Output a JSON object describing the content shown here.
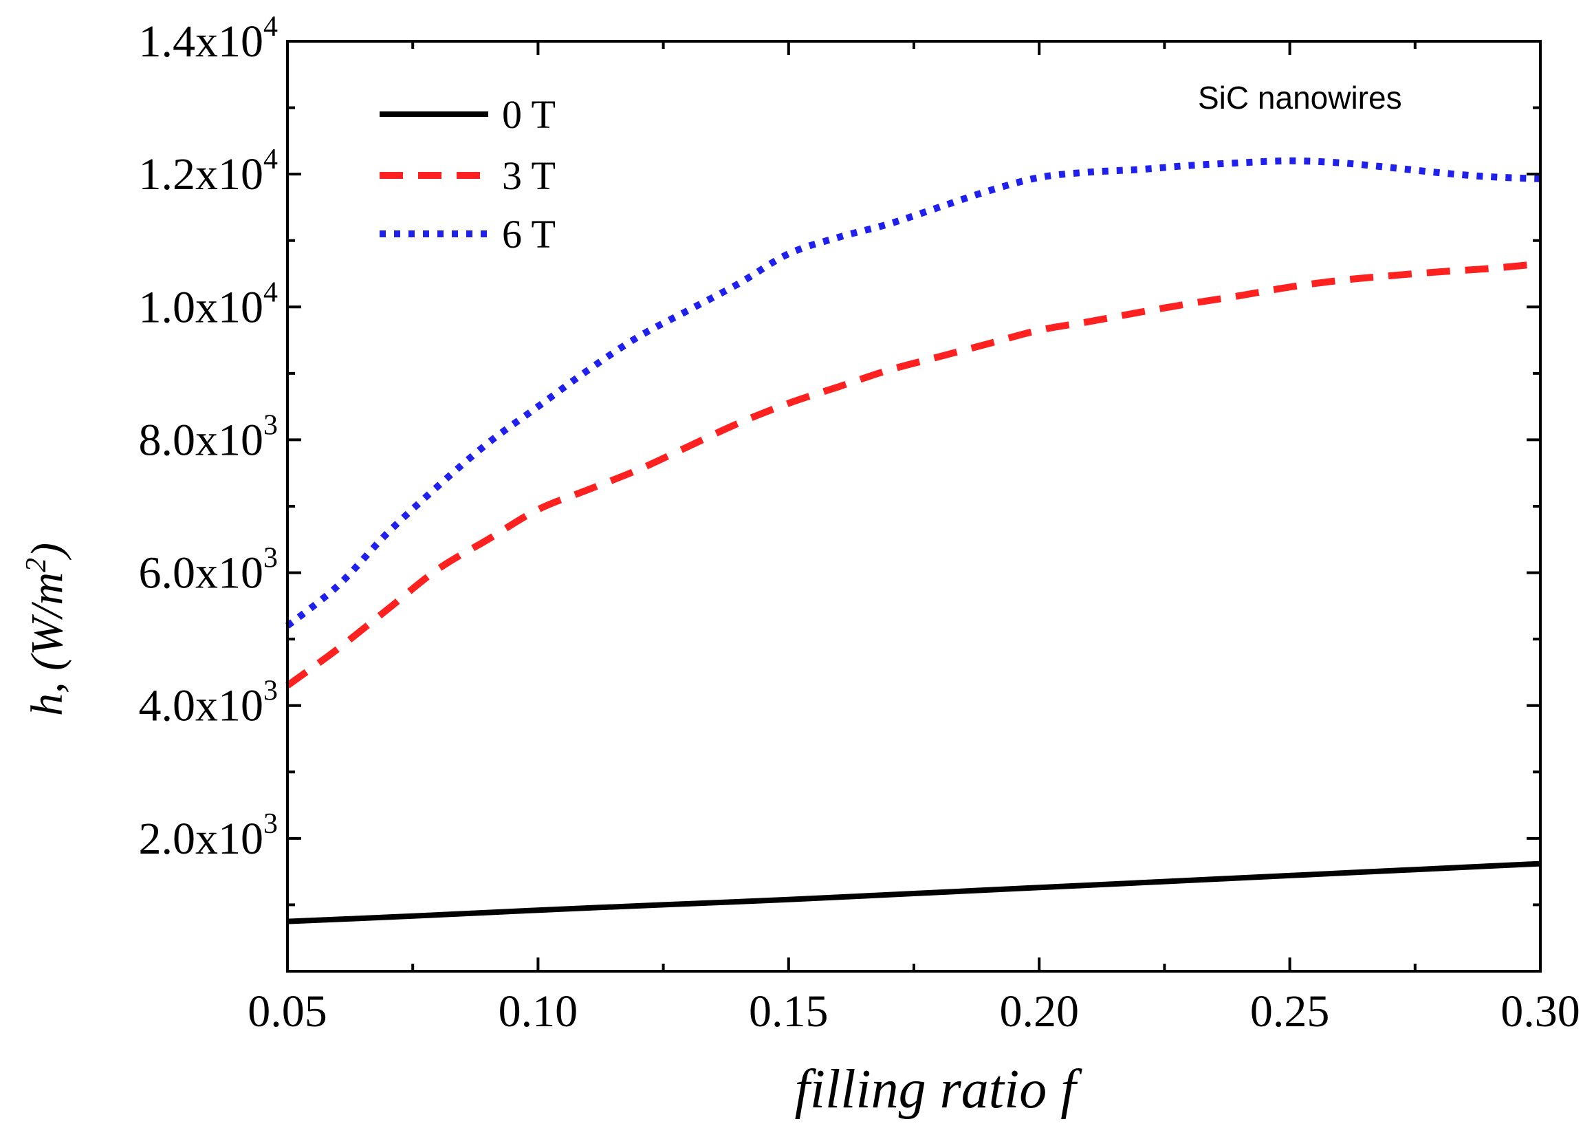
{
  "chart_data": {
    "type": "line",
    "title": "",
    "xlabel": "filling ratio f",
    "ylabel_main": "h, (W/m",
    "ylabel_sup": "2",
    "ylabel_end": ")",
    "xlim": [
      0.05,
      0.3
    ],
    "ylim": [
      0,
      14000
    ],
    "grid": false,
    "legend_position": "top-left",
    "annotation": "SiC nanowires",
    "x_ticks": [
      {
        "value": 0.05,
        "label": "0.05"
      },
      {
        "value": 0.1,
        "label": "0.10"
      },
      {
        "value": 0.15,
        "label": "0.15"
      },
      {
        "value": 0.2,
        "label": "0.20"
      },
      {
        "value": 0.25,
        "label": "0.25"
      },
      {
        "value": 0.3,
        "label": "0.30"
      }
    ],
    "y_ticks": [
      {
        "value": 2000,
        "mantissa": "2.0x10",
        "exp": "3"
      },
      {
        "value": 4000,
        "mantissa": "4.0x10",
        "exp": "3"
      },
      {
        "value": 6000,
        "mantissa": "6.0x10",
        "exp": "3"
      },
      {
        "value": 8000,
        "mantissa": "8.0x10",
        "exp": "3"
      },
      {
        "value": 10000,
        "mantissa": "1.0x10",
        "exp": "4"
      },
      {
        "value": 12000,
        "mantissa": "1.2x10",
        "exp": "4"
      },
      {
        "value": 14000,
        "mantissa": "1.4x10",
        "exp": "4"
      }
    ],
    "series": [
      {
        "name": "0 T",
        "color": "#000000",
        "style": "solid",
        "x": [
          0.05,
          0.075,
          0.1,
          0.125,
          0.15,
          0.175,
          0.2,
          0.225,
          0.25,
          0.275,
          0.3
        ],
        "y": [
          750,
          830,
          920,
          1000,
          1080,
          1170,
          1260,
          1350,
          1440,
          1530,
          1620
        ]
      },
      {
        "name": "3 T",
        "color": "#ff2020",
        "style": "dashed",
        "x": [
          0.05,
          0.06,
          0.07,
          0.08,
          0.09,
          0.1,
          0.11,
          0.12,
          0.13,
          0.14,
          0.15,
          0.16,
          0.17,
          0.18,
          0.19,
          0.2,
          0.21,
          0.22,
          0.23,
          0.24,
          0.25,
          0.26,
          0.27,
          0.28,
          0.29,
          0.3
        ],
        "y": [
          4300,
          4850,
          5450,
          6050,
          6500,
          6950,
          7250,
          7550,
          7900,
          8250,
          8550,
          8800,
          9050,
          9250,
          9450,
          9650,
          9780,
          9920,
          10050,
          10170,
          10300,
          10400,
          10470,
          10530,
          10580,
          10650
        ]
      },
      {
        "name": "6 T",
        "color": "#2020ee",
        "style": "dotted",
        "x": [
          0.05,
          0.06,
          0.07,
          0.08,
          0.09,
          0.1,
          0.11,
          0.12,
          0.13,
          0.14,
          0.15,
          0.16,
          0.17,
          0.18,
          0.19,
          0.2,
          0.21,
          0.22,
          0.23,
          0.24,
          0.25,
          0.26,
          0.27,
          0.28,
          0.29,
          0.3
        ],
        "y": [
          5200,
          5800,
          6600,
          7300,
          7950,
          8500,
          9050,
          9550,
          9950,
          10350,
          10800,
          11050,
          11250,
          11500,
          11750,
          11950,
          12030,
          12070,
          12130,
          12170,
          12200,
          12170,
          12100,
          12020,
          11960,
          11930
        ]
      }
    ]
  }
}
